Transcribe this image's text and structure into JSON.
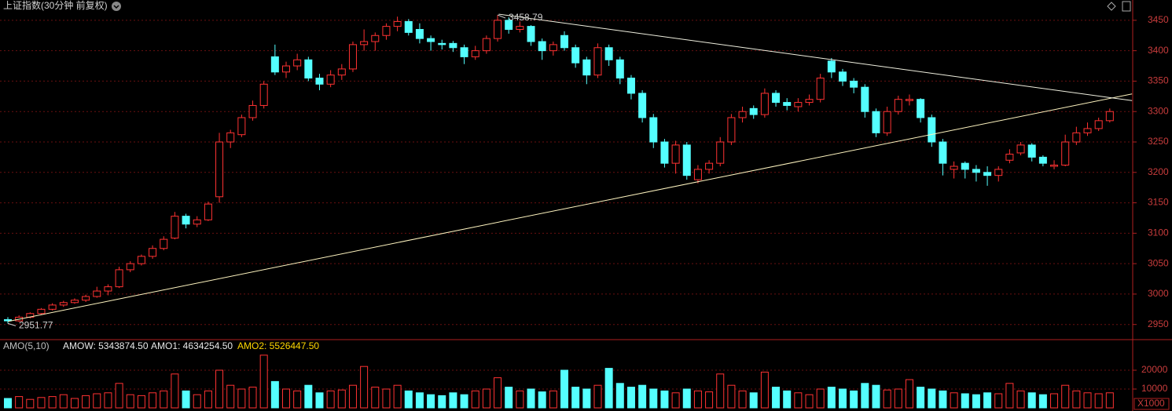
{
  "chart_data": {
    "type": "candlestick",
    "title": "上证指数(30分钟 前复权)",
    "up_color": "#ff3232",
    "down_color": "#54ffff",
    "ylim": [
      2929,
      3464
    ],
    "yticks": [
      2950,
      3000,
      3050,
      3100,
      3150,
      3200,
      3250,
      3300,
      3350,
      3400,
      3450
    ],
    "grid": true,
    "ohlc": [
      [
        2958,
        2962,
        2951.77,
        2956
      ],
      [
        2956,
        2965,
        2954,
        2962
      ],
      [
        2962,
        2970,
        2960,
        2968
      ],
      [
        2968,
        2977,
        2966,
        2975
      ],
      [
        2975,
        2985,
        2973,
        2982
      ],
      [
        2982,
        2989,
        2979,
        2986
      ],
      [
        2986,
        2993,
        2984,
        2990
      ],
      [
        2990,
        2999,
        2987,
        2996
      ],
      [
        2996,
        3012,
        2994,
        3005
      ],
      [
        3005,
        3016,
        2998,
        3012
      ],
      [
        3012,
        3045,
        3010,
        3040
      ],
      [
        3040,
        3054,
        3036,
        3050
      ],
      [
        3050,
        3065,
        3047,
        3062
      ],
      [
        3062,
        3080,
        3058,
        3075
      ],
      [
        3075,
        3095,
        3072,
        3090
      ],
      [
        3092,
        3135,
        3090,
        3128
      ],
      [
        3128,
        3132,
        3108,
        3115
      ],
      [
        3115,
        3128,
        3110,
        3122
      ],
      [
        3122,
        3152,
        3120,
        3148
      ],
      [
        3160,
        3265,
        3150,
        3250
      ],
      [
        3250,
        3270,
        3240,
        3265
      ],
      [
        3262,
        3295,
        3258,
        3290
      ],
      [
        3290,
        3318,
        3285,
        3310
      ],
      [
        3310,
        3350,
        3305,
        3345
      ],
      [
        3390,
        3410,
        3360,
        3365
      ],
      [
        3365,
        3382,
        3355,
        3375
      ],
      [
        3375,
        3395,
        3368,
        3385
      ],
      [
        3385,
        3390,
        3350,
        3355
      ],
      [
        3355,
        3362,
        3335,
        3345
      ],
      [
        3345,
        3368,
        3340,
        3360
      ],
      [
        3360,
        3378,
        3352,
        3370
      ],
      [
        3370,
        3415,
        3365,
        3410
      ],
      [
        3410,
        3435,
        3400,
        3415
      ],
      [
        3415,
        3430,
        3400,
        3425
      ],
      [
        3425,
        3445,
        3418,
        3440
      ],
      [
        3440,
        3456,
        3432,
        3448
      ],
      [
        3448,
        3452,
        3425,
        3430
      ],
      [
        3435,
        3445,
        3412,
        3420
      ],
      [
        3420,
        3425,
        3400,
        3415
      ],
      [
        3412,
        3418,
        3402,
        3410
      ],
      [
        3412,
        3416,
        3398,
        3405
      ],
      [
        3405,
        3410,
        3378,
        3390
      ],
      [
        3390,
        3408,
        3385,
        3400
      ],
      [
        3400,
        3425,
        3395,
        3420
      ],
      [
        3420,
        3458.79,
        3415,
        3450
      ],
      [
        3450,
        3455,
        3428,
        3435
      ],
      [
        3435,
        3448,
        3430,
        3440
      ],
      [
        3440,
        3442,
        3408,
        3415
      ],
      [
        3415,
        3420,
        3385,
        3400
      ],
      [
        3400,
        3415,
        3392,
        3410
      ],
      [
        3425,
        3432,
        3400,
        3405
      ],
      [
        3405,
        3410,
        3372,
        3380
      ],
      [
        3385,
        3390,
        3345,
        3360
      ],
      [
        3360,
        3412,
        3355,
        3405
      ],
      [
        3405,
        3410,
        3375,
        3385
      ],
      [
        3385,
        3390,
        3345,
        3355
      ],
      [
        3355,
        3360,
        3320,
        3330
      ],
      [
        3330,
        3335,
        3282,
        3290
      ],
      [
        3290,
        3296,
        3240,
        3250
      ],
      [
        3250,
        3255,
        3208,
        3215
      ],
      [
        3215,
        3252,
        3198,
        3245
      ],
      [
        3245,
        3250,
        3188,
        3195
      ],
      [
        3188,
        3212,
        3182,
        3205
      ],
      [
        3205,
        3220,
        3198,
        3215
      ],
      [
        3215,
        3258,
        3210,
        3250
      ],
      [
        3250,
        3296,
        3245,
        3290
      ],
      [
        3290,
        3308,
        3282,
        3300
      ],
      [
        3305,
        3310,
        3288,
        3295
      ],
      [
        3295,
        3338,
        3290,
        3330
      ],
      [
        3330,
        3335,
        3308,
        3315
      ],
      [
        3315,
        3322,
        3302,
        3310
      ],
      [
        3308,
        3322,
        3300,
        3315
      ],
      [
        3315,
        3328,
        3310,
        3320
      ],
      [
        3320,
        3362,
        3315,
        3355
      ],
      [
        3383,
        3388,
        3355,
        3365
      ],
      [
        3365,
        3370,
        3342,
        3350
      ],
      [
        3350,
        3355,
        3330,
        3340
      ],
      [
        3340,
        3345,
        3290,
        3300
      ],
      [
        3300,
        3305,
        3258,
        3265
      ],
      [
        3265,
        3308,
        3260,
        3300
      ],
      [
        3300,
        3326,
        3295,
        3320
      ],
      [
        3318,
        3328,
        3310,
        3320
      ],
      [
        3320,
        3322,
        3282,
        3290
      ],
      [
        3290,
        3295,
        3242,
        3250
      ],
      [
        3250,
        3255,
        3195,
        3215
      ],
      [
        3205,
        3218,
        3190,
        3210
      ],
      [
        3215,
        3218,
        3190,
        3205
      ],
      [
        3205,
        3212,
        3185,
        3200
      ],
      [
        3200,
        3210,
        3178,
        3195
      ],
      [
        3195,
        3210,
        3185,
        3205
      ],
      [
        3220,
        3238,
        3215,
        3230
      ],
      [
        3232,
        3250,
        3228,
        3245
      ],
      [
        3245,
        3248,
        3218,
        3225
      ],
      [
        3225,
        3228,
        3210,
        3215
      ],
      [
        3210,
        3220,
        3205,
        3212
      ],
      [
        3212,
        3262,
        3210,
        3250
      ],
      [
        3250,
        3275,
        3245,
        3265
      ],
      [
        3265,
        3282,
        3260,
        3272
      ],
      [
        3272,
        3290,
        3268,
        3285
      ],
      [
        3285,
        3305,
        3282,
        3300
      ]
    ],
    "trend_lines": [
      {
        "from": [
          0,
          2955
        ],
        "to": [
          101,
          3329
        ],
        "color": "#fff5c0"
      },
      {
        "from": [
          44.1,
          3460
        ],
        "to": [
          101,
          3318
        ],
        "color": "#f0f0e0"
      }
    ],
    "volume_header": [
      "AMO(5,10)",
      "AMOW: 5343874.50",
      "AMO1: 4634254.50",
      "AMO2: 5526447.50"
    ],
    "volume_unit": "X1000",
    "volume_ylim": [
      0,
      35000
    ],
    "volume_yticks": [
      10000,
      20000
    ],
    "volume": [
      5000,
      6000,
      4500,
      5500,
      6000,
      7000,
      5000,
      6500,
      7500,
      8000,
      13000,
      7000,
      6500,
      8000,
      9000,
      18000,
      9000,
      7000,
      9000,
      20000,
      12000,
      10000,
      11000,
      28000,
      14000,
      10000,
      9000,
      12000,
      8000,
      9000,
      9500,
      12000,
      22000,
      11000,
      10000,
      12000,
      9000,
      8000,
      7000,
      6500,
      8000,
      7000,
      9000,
      10000,
      16000,
      11000,
      9000,
      10000,
      8500,
      9000,
      20000,
      11000,
      10000,
      12000,
      21000,
      13000,
      11000,
      12000,
      10000,
      9000,
      8000,
      10000,
      9000,
      8500,
      18000,
      12000,
      9000,
      8000,
      19000,
      11000,
      9000,
      8000,
      7000,
      10000,
      11000,
      10000,
      9000,
      13000,
      12000,
      9500,
      10000,
      15000,
      11000,
      10000,
      9000,
      8000,
      7500,
      7000,
      8000,
      7500,
      13000,
      9000,
      8000,
      7000,
      7500,
      12000,
      9000,
      8000,
      7500,
      8000
    ]
  }
}
